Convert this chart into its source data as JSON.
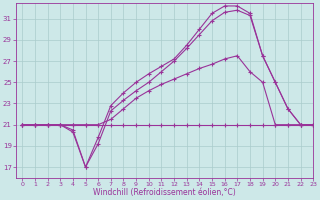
{
  "background_color": "#cde8e8",
  "grid_color": "#aacccc",
  "line_color": "#993399",
  "xlim": [
    -0.5,
    23
  ],
  "ylim": [
    16.0,
    32.5
  ],
  "yticks": [
    17,
    19,
    21,
    23,
    25,
    27,
    29,
    31
  ],
  "xticks": [
    0,
    1,
    2,
    3,
    4,
    5,
    6,
    7,
    8,
    9,
    10,
    11,
    12,
    13,
    14,
    15,
    16,
    17,
    18,
    19,
    20,
    21,
    22,
    23
  ],
  "xlabel": "Windchill (Refroidissement éolien,°C)",
  "line_flat": [
    21,
    21,
    21,
    21,
    21,
    21,
    21,
    21,
    21,
    21,
    21,
    21,
    21,
    21,
    21,
    21,
    21,
    21,
    21,
    21,
    21,
    21,
    21,
    21
  ],
  "line_dip": [
    21,
    21,
    21,
    21,
    20.3,
    17.0,
    19.2,
    22.3,
    23.3,
    24.2,
    25.0,
    26.0,
    27.0,
    28.2,
    29.5,
    30.8,
    31.6,
    31.8,
    31.3,
    27.5,
    25.0,
    22.5,
    21.0,
    21.0
  ],
  "line_peak": [
    21,
    21,
    21,
    21,
    20.5,
    17.0,
    19.8,
    22.8,
    24.0,
    25.0,
    25.8,
    26.5,
    27.2,
    28.5,
    30.0,
    31.5,
    32.2,
    32.2,
    31.5,
    27.5,
    25.0,
    22.5,
    21.0,
    21.0
  ],
  "line_mid": [
    21,
    21,
    21,
    21,
    21,
    21,
    21,
    21.5,
    22.5,
    23.5,
    24.2,
    24.8,
    25.3,
    25.8,
    26.3,
    26.7,
    27.2,
    27.5,
    26.0,
    25.0,
    21.0,
    21.0,
    21.0,
    21.0
  ]
}
